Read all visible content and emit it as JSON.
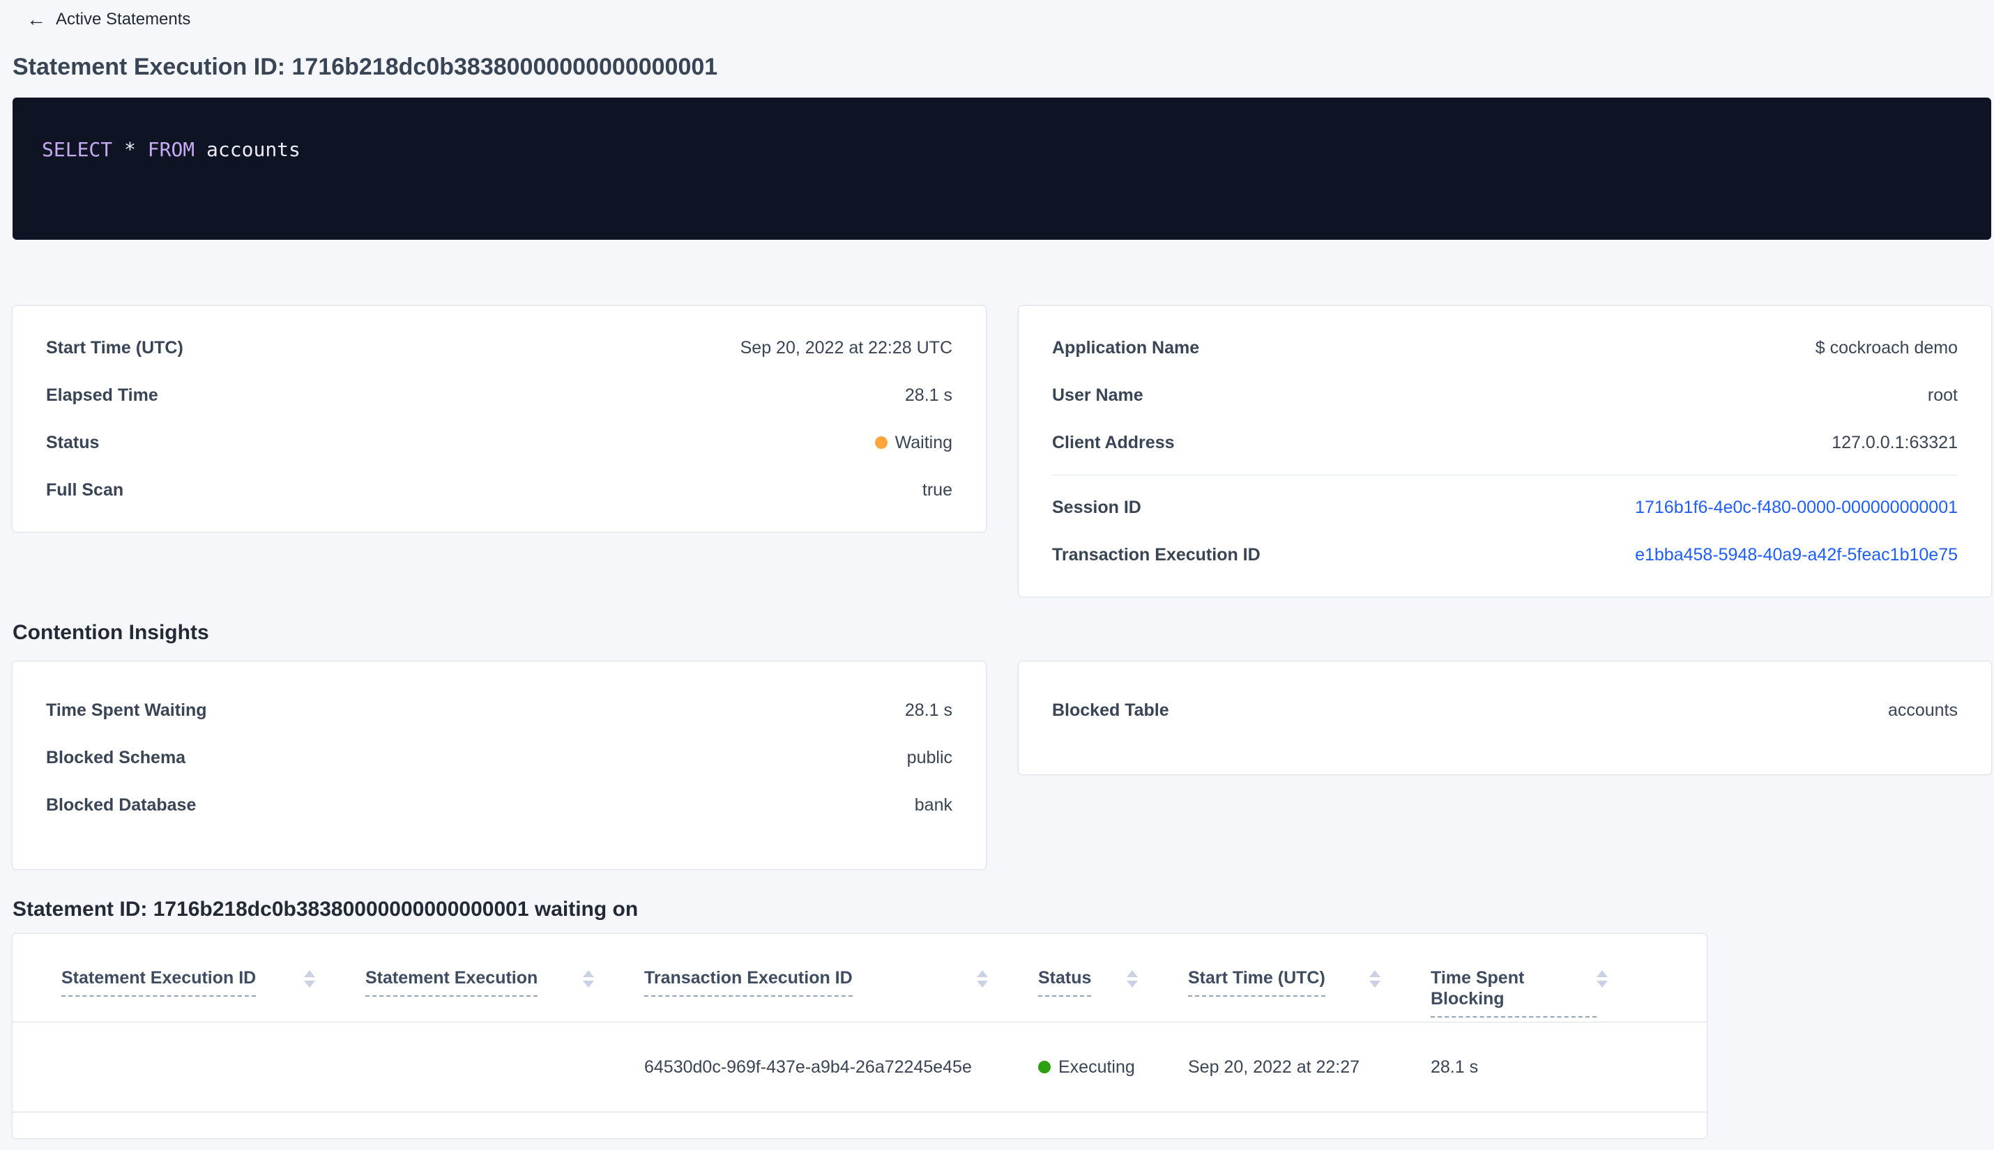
{
  "topbar": {
    "back_label": "Active Statements"
  },
  "page_title": "Statement Execution ID: 1716b218dc0b38380000000000000001",
  "sql_query": {
    "tokens": [
      {
        "text": "SELECT",
        "kind": "keyword"
      },
      {
        "text": " * ",
        "kind": "plain"
      },
      {
        "text": "FROM",
        "kind": "keyword"
      },
      {
        "text": " accounts",
        "kind": "plain"
      }
    ]
  },
  "execution_card": {
    "start_time": {
      "label": "Start Time (UTC)",
      "value": "Sep 20, 2022 at 22:28 UTC"
    },
    "elapsed_time": {
      "label": "Elapsed Time",
      "value": "28.1 s"
    },
    "status": {
      "label": "Status",
      "value": "Waiting"
    },
    "full_scan": {
      "label": "Full Scan",
      "value": "true"
    }
  },
  "session_card": {
    "application_name": {
      "label": "Application Name",
      "value": "$ cockroach demo"
    },
    "user_name": {
      "label": "User Name",
      "value": "root"
    },
    "client_address": {
      "label": "Client Address",
      "value": "127.0.0.1:63321"
    },
    "session_id": {
      "label": "Session ID",
      "value": "1716b1f6-4e0c-f480-0000-000000000001"
    },
    "transaction_execution_id": {
      "label": "Transaction Execution ID",
      "value": "e1bba458-5948-40a9-a42f-5feac1b10e75"
    }
  },
  "contention": {
    "heading": "Contention Insights",
    "time_spent_waiting": {
      "label": "Time Spent Waiting",
      "value": "28.1 s"
    },
    "blocked_schema": {
      "label": "Blocked Schema",
      "value": "public"
    },
    "blocked_database": {
      "label": "Blocked Database",
      "value": "bank"
    },
    "blocked_table": {
      "label": "Blocked Table",
      "value": "accounts"
    }
  },
  "waiting_table": {
    "heading": "Statement ID: 1716b218dc0b38380000000000000001 waiting on",
    "columns": [
      "Statement Execution ID",
      "Statement Execution",
      "Transaction Execution ID",
      "Status",
      "Start Time (UTC)",
      "Time Spent Blocking"
    ],
    "row": {
      "statement_execution_id": "",
      "statement_execution": "",
      "transaction_execution_id": "64530d0c-969f-437e-a9b4-26a72245e45e",
      "status": "Executing",
      "start_time": "Sep 20, 2022 at 22:27",
      "time_spent_blocking": "28.1 s"
    }
  },
  "icons": {
    "back_arrow": "←",
    "sort": "up-down-carets"
  },
  "colors": {
    "page_background": "#f5f7fa",
    "link_blue": "#1f5ef5",
    "status_waiting_orange": "#ffa53e",
    "status_executing_green": "#2ca010",
    "sql_keyword_purple": "#c7abf2",
    "sql_background": "#0e1423"
  }
}
